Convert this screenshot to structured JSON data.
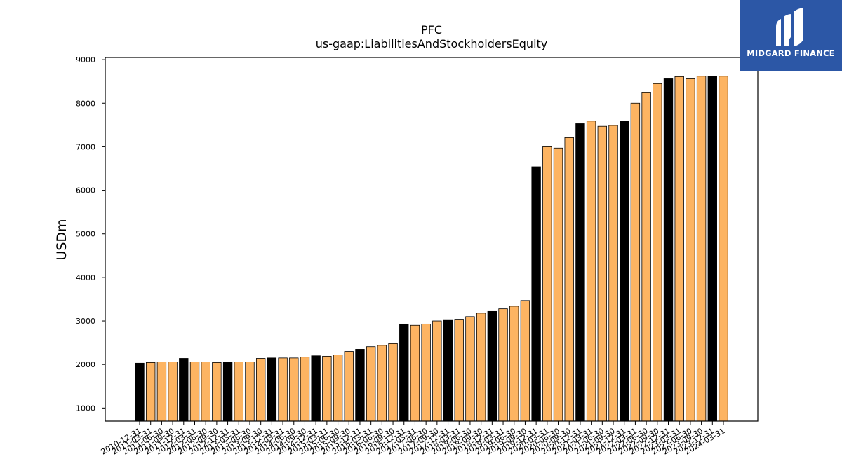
{
  "brand": {
    "name": "MIDGARD FINANCE",
    "logo_icon": "midgard-mark-icon",
    "background": "#2c57a6"
  },
  "chart_data": {
    "type": "bar",
    "title": "PFC",
    "subtitle": "us-gaap:LiabilitiesAndStockholdersEquity",
    "ylabel": "USDm",
    "xlabel": "",
    "ylim": [
      700,
      9050
    ],
    "yticks": [
      1000,
      2000,
      3000,
      4000,
      5000,
      6000,
      7000,
      8000,
      9000
    ],
    "grid": false,
    "colors": {
      "annual": "#000000",
      "quarterly": "#fdb462"
    },
    "categories": [
      "2010-12-31",
      "2011-03-31",
      "2011-06-30",
      "2011-09-30",
      "2011-12-31",
      "2012-03-31",
      "2012-06-30",
      "2012-09-30",
      "2012-12-31",
      "2013-03-31",
      "2013-06-30",
      "2013-09-30",
      "2013-12-31",
      "2014-03-31",
      "2014-06-30",
      "2014-09-30",
      "2014-12-31",
      "2015-03-31",
      "2015-06-30",
      "2015-09-30",
      "2015-12-31",
      "2016-03-31",
      "2016-06-30",
      "2016-09-30",
      "2016-12-31",
      "2017-03-31",
      "2017-06-30",
      "2017-09-30",
      "2017-12-31",
      "2018-03-31",
      "2018-06-30",
      "2018-09-30",
      "2018-12-31",
      "2019-03-31",
      "2019-06-30",
      "2019-09-30",
      "2019-12-31",
      "2020-03-31",
      "2020-06-30",
      "2020-09-30",
      "2020-12-31",
      "2021-03-31",
      "2021-06-30",
      "2021-09-30",
      "2021-12-31",
      "2022-03-31",
      "2022-06-30",
      "2022-09-30",
      "2022-12-31",
      "2023-03-31",
      "2023-06-30",
      "2023-09-30",
      "2023-12-31",
      "2024-03-31"
    ],
    "values": [
      2030,
      2045,
      2060,
      2060,
      2140,
      2060,
      2060,
      2045,
      2045,
      2060,
      2060,
      2140,
      2150,
      2150,
      2150,
      2170,
      2200,
      2190,
      2220,
      2300,
      2350,
      2410,
      2440,
      2480,
      2930,
      2900,
      2930,
      3000,
      3030,
      3040,
      3100,
      3180,
      3220,
      3280,
      3340,
      3470,
      6540,
      7000,
      6970,
      7210,
      7530,
      7590,
      7470,
      7490,
      7580,
      8000,
      8240,
      8450,
      8560,
      8610,
      8560,
      8620,
      8620,
      8620
    ],
    "annual_flags": [
      1,
      0,
      0,
      0,
      1,
      0,
      0,
      0,
      1,
      0,
      0,
      0,
      1,
      0,
      0,
      0,
      1,
      0,
      0,
      0,
      1,
      0,
      0,
      0,
      1,
      0,
      0,
      0,
      1,
      0,
      0,
      0,
      1,
      0,
      0,
      0,
      1,
      0,
      0,
      0,
      1,
      0,
      0,
      0,
      1,
      0,
      0,
      0,
      1,
      0,
      0,
      0,
      1,
      0
    ]
  }
}
